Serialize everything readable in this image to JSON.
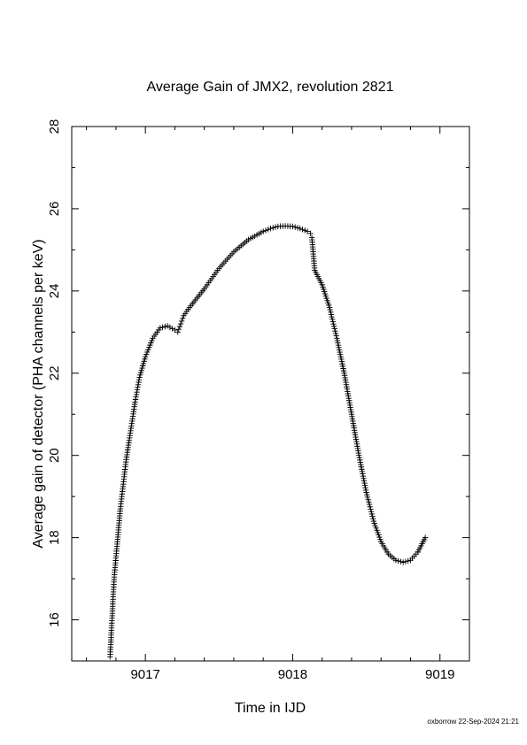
{
  "chart_data": {
    "type": "scatter",
    "marker": "plus",
    "title": "Average Gain of JMX2, revolution 2821",
    "xlabel": "Time in IJD",
    "ylabel": "Average gain of detector (PHA channels per keV)",
    "xlim": [
      9016.5,
      9019.2
    ],
    "ylim": [
      15,
      28
    ],
    "xticks": [
      9017,
      9018,
      9019
    ],
    "yticks": [
      16,
      18,
      20,
      22,
      24,
      26,
      28
    ],
    "grid": false,
    "series": [
      {
        "x": [
          9016.76,
          9016.765,
          9016.77,
          9016.775,
          9016.78,
          9016.785,
          9016.79,
          9016.8,
          9016.81,
          9016.82,
          9016.83,
          9016.85,
          9016.87,
          9016.9,
          9016.93,
          9016.96,
          9017.0,
          9017.05,
          9017.1,
          9017.15,
          9017.2,
          9017.22,
          9017.24,
          9017.26,
          9017.28,
          9017.3,
          9017.4,
          9017.5,
          9017.6,
          9017.7,
          9017.8,
          9017.85,
          9017.9,
          9017.95,
          9018.0,
          9018.05,
          9018.1,
          9018.12,
          9018.13,
          9018.14,
          9018.15,
          9018.2,
          9018.25,
          9018.3,
          9018.35,
          9018.4,
          9018.45,
          9018.5,
          9018.55,
          9018.6,
          9018.65,
          9018.7,
          9018.75,
          9018.8,
          9018.85,
          9018.9
        ],
        "y": [
          15.1,
          15.4,
          15.8,
          16.1,
          16.5,
          16.8,
          17.1,
          17.5,
          17.9,
          18.3,
          18.7,
          19.3,
          19.9,
          20.6,
          21.3,
          21.9,
          22.4,
          22.85,
          23.1,
          23.15,
          23.05,
          23.0,
          23.2,
          23.4,
          23.5,
          23.6,
          24.05,
          24.55,
          24.95,
          25.25,
          25.45,
          25.52,
          25.57,
          25.58,
          25.57,
          25.52,
          25.45,
          25.4,
          25.3,
          24.9,
          24.5,
          24.15,
          23.6,
          22.85,
          22.0,
          21.0,
          20.0,
          19.1,
          18.4,
          17.9,
          17.6,
          17.45,
          17.4,
          17.45,
          17.65,
          18.0
        ]
      }
    ]
  },
  "footer": {
    "credit": "oxborrow 22-Sep-2024 21:21"
  }
}
